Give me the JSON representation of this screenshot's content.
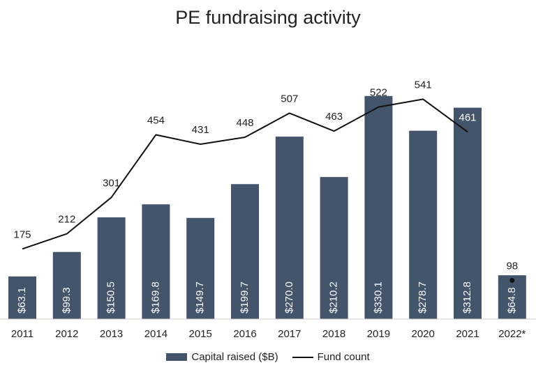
{
  "chart_data": {
    "type": "bar",
    "title": "PE fundraising activity",
    "categories": [
      "2011",
      "2012",
      "2013",
      "2014",
      "2015",
      "2016",
      "2017",
      "2018",
      "2019",
      "2020",
      "2021",
      "2022*"
    ],
    "series": [
      {
        "name": "Capital raised ($B)",
        "type": "bar",
        "values": [
          63.1,
          99.3,
          150.5,
          169.8,
          149.7,
          199.7,
          270.0,
          210.2,
          330.1,
          278.7,
          312.8,
          64.8
        ],
        "labels": [
          "$63.1",
          "$99.3",
          "$150.5",
          "$169.8",
          "$149.7",
          "$199.7",
          "$270.0",
          "$210.2",
          "$330.1",
          "$278.7",
          "$312.8",
          "$64.8"
        ],
        "color": "#44546a"
      },
      {
        "name": "Fund count",
        "type": "line",
        "values": [
          175,
          212,
          301,
          454,
          431,
          448,
          507,
          463,
          522,
          541,
          461,
          98
        ],
        "labels": [
          "175",
          "212",
          "301",
          "454",
          "431",
          "448",
          "507",
          "463",
          "522",
          "541",
          "461",
          "98"
        ],
        "color": "#111111"
      }
    ],
    "line_break_before_index": 11,
    "grid": false,
    "legend": "bottom"
  }
}
